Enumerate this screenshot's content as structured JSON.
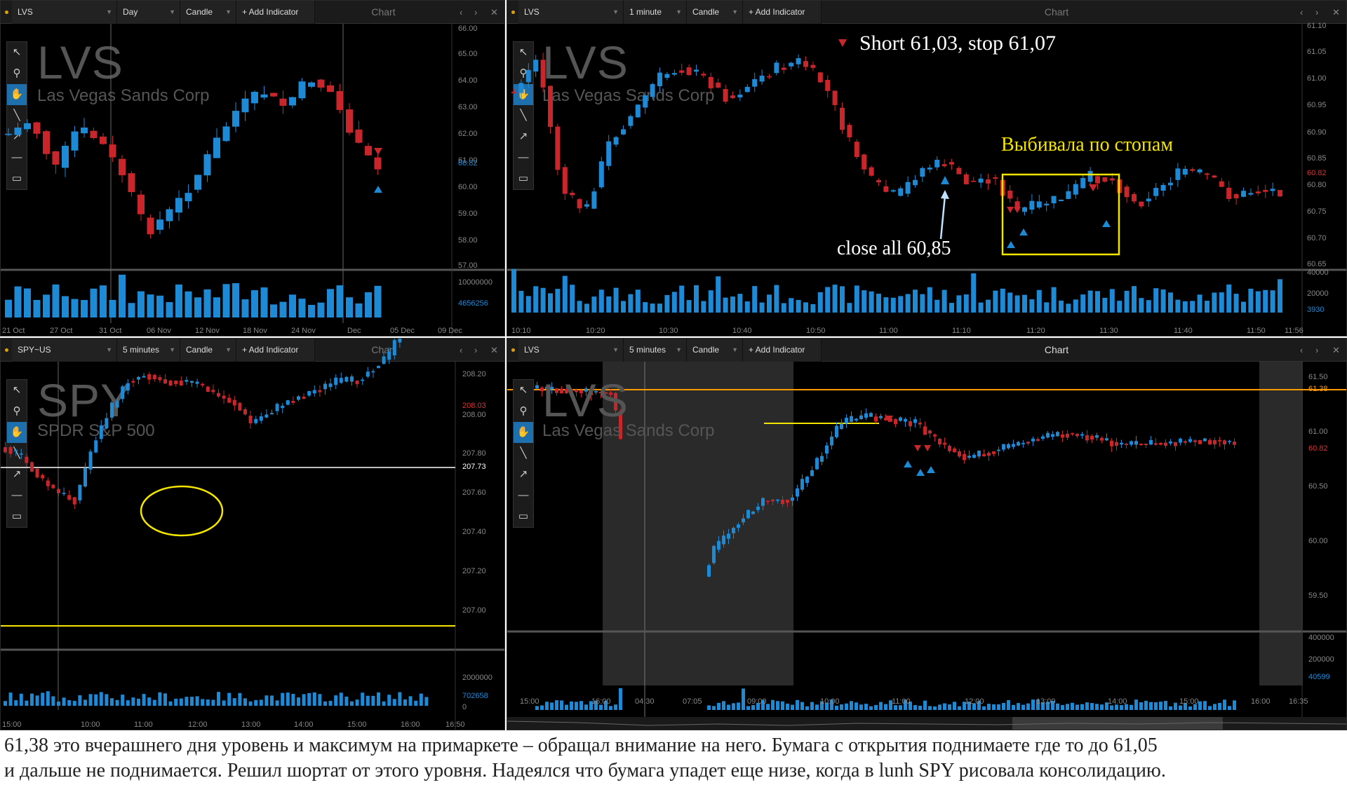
{
  "panels": {
    "tl": {
      "symbol": "LVS",
      "interval": "Day",
      "type": "Candle",
      "add": "+ Add Indicator",
      "title": "Chart",
      "wm1": "LVS",
      "wm2": "Las Vegas Sands Corp",
      "yticks": [
        "66.00",
        "65.00",
        "64.00",
        "63.00",
        "62.00",
        "61.00",
        "60.00",
        "59.00",
        "58.00",
        "57.00"
      ],
      "price_tag": "60.82",
      "vol_ticks": [
        "10000000",
        "4656256"
      ],
      "xticks": [
        "21 Oct",
        "27 Oct",
        "31 Oct",
        "06 Nov",
        "12 Nov",
        "18 Nov",
        "24 Nov",
        "Dec",
        "05 Dec",
        "09 Dec"
      ]
    },
    "tr": {
      "symbol": "LVS",
      "interval": "1 minute",
      "type": "Candle",
      "add": "+ Add Indicator",
      "title": "Chart",
      "wm1": "LVS",
      "wm2": "Las Vegas Sands Corp",
      "yticks": [
        "61.10",
        "61.05",
        "61.00",
        "60.95",
        "60.90",
        "60.85",
        "60.82",
        "60.80",
        "60.75",
        "60.70",
        "60.65"
      ],
      "vol_ticks": [
        "40000",
        "20000",
        "3930"
      ],
      "xticks": [
        "10:10",
        "10:20",
        "10:30",
        "10:40",
        "10:50",
        "11:00",
        "11:10",
        "11:20",
        "11:30",
        "11:40",
        "11:50",
        "11:56"
      ]
    },
    "bl": {
      "symbol": "SPY~US",
      "interval": "5 minutes",
      "type": "Candle",
      "add": "+ Add Indicator",
      "title": "Chart",
      "wm1": "SPY",
      "wm2": "SPDR S&P 500",
      "yticks": [
        "208.20",
        "208.03",
        "208.00",
        "207.80",
        "207.73",
        "207.60",
        "207.40",
        "207.20",
        "207.00"
      ],
      "vol_ticks": [
        "2000000",
        "702658",
        "0"
      ],
      "xticks": [
        "15:00",
        "10:00",
        "11:00",
        "12:00",
        "13:00",
        "14:00",
        "15:00",
        "16:00",
        "16:50"
      ]
    },
    "br": {
      "symbol": "LVS",
      "interval": "5 minutes",
      "type": "Candle",
      "add": "+ Add Indicator",
      "title": "Chart",
      "wm1": "LVS",
      "wm2": "Las Vegas Sands Corp",
      "yticks": [
        "61.50",
        "61.38",
        "61.00",
        "60.82",
        "60.50",
        "60.00",
        "59.50"
      ],
      "vol_ticks": [
        "400000",
        "200000",
        "40599"
      ],
      "xticks": [
        "15:00",
        "16:00",
        "04:30",
        "07:05",
        "09:00",
        "10:00",
        "11:00",
        "12:00",
        "13:00",
        "14:00",
        "15:00",
        "16:00",
        "16:35"
      ]
    }
  },
  "annotations": {
    "short": "Short 61,03, stop 61,07",
    "knocked": "Выбивала по стопам",
    "close_all": "close all 60,85"
  },
  "caption_lines": [
    "61,38 это вчерашнего дня уровень и максимум на примаркете – обращал внимание на него. Бумага с открытия поднимаете где то до 61,05",
    "и дальше не поднимается. Решил шортат от этого уровня. Надеялся что бумага упадет еще низе, когда в lunh SPY рисовала консолидацию."
  ],
  "colors": {
    "up": "#1e8ad6",
    "down": "#c9262c",
    "panel_bg": "#000000",
    "annotation_yellow": "#f4e500",
    "annotation_white": "#ffffff"
  },
  "icons": [
    "pointer-icon",
    "zoom-icon",
    "hand-icon",
    "line-icon",
    "arrow-icon",
    "hline-icon",
    "rect-icon"
  ]
}
